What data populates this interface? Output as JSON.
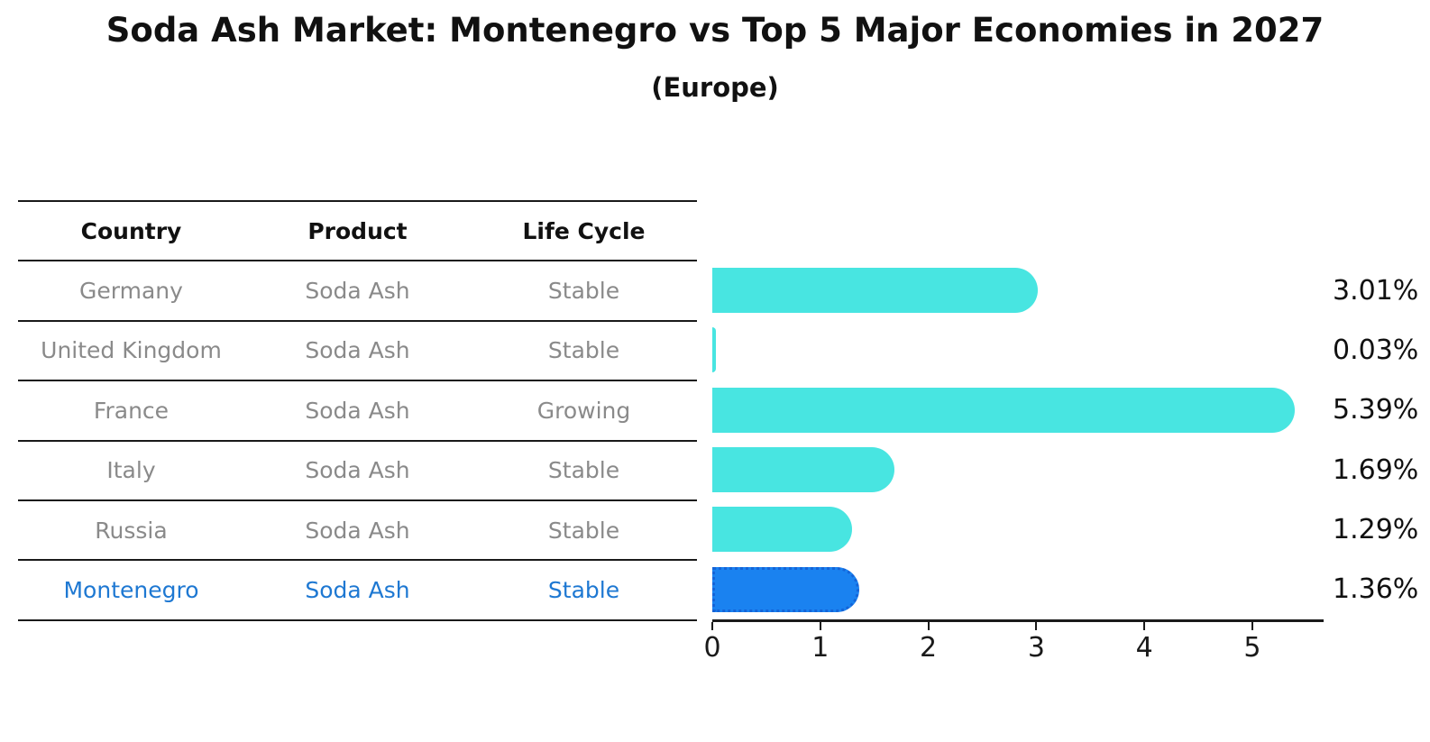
{
  "title": "Soda Ash Market: Montenegro vs Top 5 Major Economies in 2027",
  "subtitle": "(Europe)",
  "table": {
    "headers": {
      "country": "Country",
      "product": "Product",
      "life_cycle": "Life Cycle"
    },
    "rows": [
      {
        "country": "Germany",
        "product": "Soda Ash",
        "life_cycle": "Stable",
        "highlight": false
      },
      {
        "country": "United Kingdom",
        "product": "Soda Ash",
        "life_cycle": "Stable",
        "highlight": false
      },
      {
        "country": "France",
        "product": "Soda Ash",
        "life_cycle": "Growing",
        "highlight": false
      },
      {
        "country": "Italy",
        "product": "Soda Ash",
        "life_cycle": "Stable",
        "highlight": false
      },
      {
        "country": "Russia",
        "product": "Soda Ash",
        "life_cycle": "Stable",
        "highlight": false
      },
      {
        "country": "Montenegro",
        "product": "Soda Ash",
        "life_cycle": "Stable",
        "highlight": true
      }
    ]
  },
  "chart_data": {
    "type": "bar",
    "orientation": "horizontal",
    "title": "Soda Ash Market: Montenegro vs Top 5 Major Economies in 2027",
    "subtitle": "(Europe)",
    "xlabel": "",
    "ylabel": "",
    "categories": [
      "Germany",
      "United Kingdom",
      "France",
      "Italy",
      "Russia",
      "Montenegro"
    ],
    "values": [
      3.01,
      0.03,
      5.39,
      1.69,
      1.29,
      1.36
    ],
    "value_labels": [
      "3.01%",
      "0.03%",
      "5.39%",
      "1.69%",
      "1.29%",
      "1.36%"
    ],
    "xlim": [
      0,
      5.66
    ],
    "xticks": [
      0,
      1,
      2,
      3,
      4,
      5
    ],
    "grid": false,
    "legend": false,
    "highlight_index": 5,
    "colors": {
      "bar": "#48E5E1",
      "hl-bar": "#1A82F0",
      "hl-border": "#1464D8",
      "hl-text": "#1E78D2",
      "row-text": "#8A8A8A",
      "line": "#1A1A1A"
    }
  }
}
